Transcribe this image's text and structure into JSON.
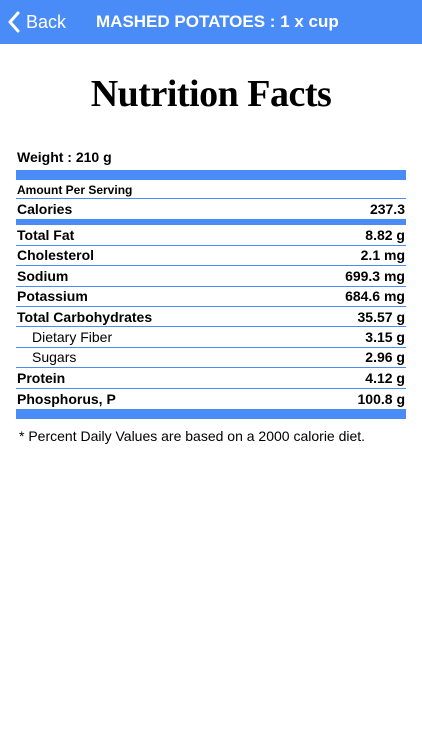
{
  "navbar": {
    "back_label": "Back",
    "title": "MASHED POTATOES : 1 x cup"
  },
  "page_title": "Nutrition Facts",
  "weight": "Weight : 210 g",
  "amount_per_serving": "Amount Per Serving",
  "calories": {
    "label": "Calories",
    "value": "237.3"
  },
  "nutrients": [
    {
      "label": "Total Fat",
      "value": "8.82 g"
    },
    {
      "label": "Cholesterol",
      "value": "2.1 mg"
    },
    {
      "label": "Sodium",
      "value": "699.3 mg"
    },
    {
      "label": "Potassium",
      "value": "684.6 mg"
    },
    {
      "label": "Total Carbohydrates",
      "value": "35.57 g"
    },
    {
      "label": "Dietary Fiber",
      "value": "3.15 g"
    },
    {
      "label": "Sugars",
      "value": "2.96 g"
    },
    {
      "label": "Protein",
      "value": "4.12 g"
    },
    {
      "label": "Phosphorus, P",
      "value": "100.8 g"
    }
  ],
  "footnote": "* Percent Daily Values are based on a 2000 calorie diet.",
  "colors": {
    "accent": "#4a8cf7",
    "background": "#ffffff"
  },
  "icons": {
    "back": "chevron-left-icon"
  }
}
